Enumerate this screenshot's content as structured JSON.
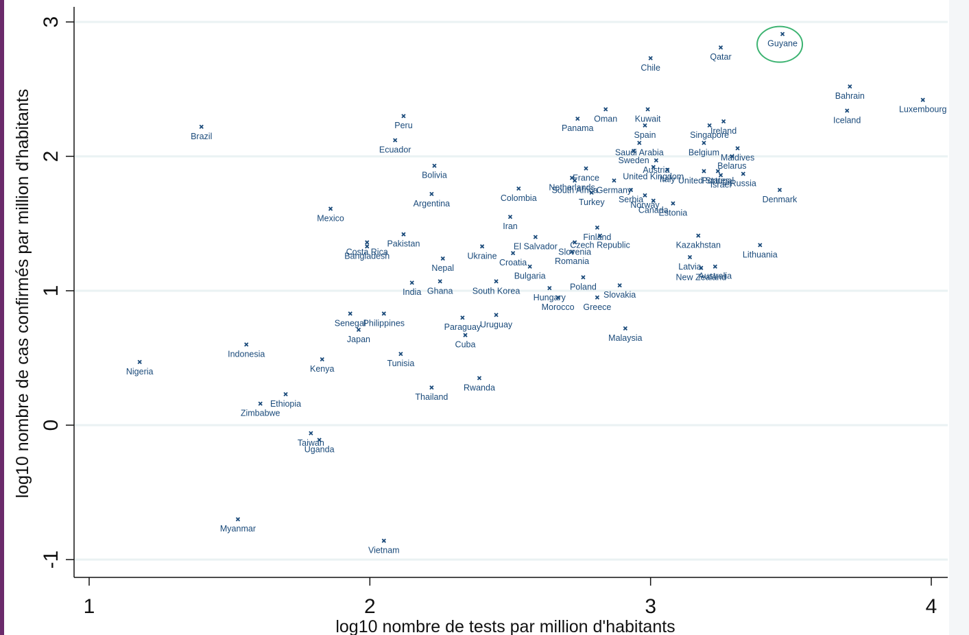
{
  "chart_data": {
    "type": "scatter",
    "title": "",
    "xlabel": "log10 nombre de tests par million d'habitants",
    "ylabel": "log10 nombre de cas confirmés par million d'habitants",
    "xlim": [
      0.95,
      4.06
    ],
    "ylim": [
      -1.12,
      3.1
    ],
    "xticks": [
      1,
      2,
      3,
      4
    ],
    "yticks": [
      -1,
      0,
      1,
      2,
      3
    ],
    "grid": "horizontal",
    "highlight": "Guyane",
    "colors": {
      "marker": "#1a4a7a",
      "grid": "#eaf2f3",
      "highlight": "#3cb371",
      "axis": "#111111"
    },
    "points": [
      {
        "label": "Guyane",
        "x": 3.47,
        "y": 2.91
      },
      {
        "label": "Qatar",
        "x": 3.25,
        "y": 2.81
      },
      {
        "label": "Chile",
        "x": 3.0,
        "y": 2.73
      },
      {
        "label": "Bahrain",
        "x": 3.71,
        "y": 2.52
      },
      {
        "label": "Luxembourg",
        "x": 3.97,
        "y": 2.42
      },
      {
        "label": "Iceland",
        "x": 3.7,
        "y": 2.34
      },
      {
        "label": "Oman",
        "x": 2.84,
        "y": 2.35
      },
      {
        "label": "Kuwait",
        "x": 2.99,
        "y": 2.35
      },
      {
        "label": "Panama",
        "x": 2.74,
        "y": 2.28
      },
      {
        "label": "Brazil",
        "x": 1.4,
        "y": 2.22
      },
      {
        "label": "Peru",
        "x": 2.12,
        "y": 2.3
      },
      {
        "label": "Ecuador",
        "x": 2.09,
        "y": 2.12
      },
      {
        "label": "Spain",
        "x": 2.98,
        "y": 2.23
      },
      {
        "label": "Ireland",
        "x": 3.26,
        "y": 2.26
      },
      {
        "label": "Singapore",
        "x": 3.21,
        "y": 2.23
      },
      {
        "label": "Saudi Arabia",
        "x": 2.96,
        "y": 2.1
      },
      {
        "label": "Sweden",
        "x": 2.94,
        "y": 2.04
      },
      {
        "label": "Belgium",
        "x": 3.19,
        "y": 2.1
      },
      {
        "label": "Maldives",
        "x": 3.31,
        "y": 2.06
      },
      {
        "label": "Bolivia",
        "x": 2.23,
        "y": 1.93
      },
      {
        "label": "Italy",
        "x": 3.06,
        "y": 1.9
      },
      {
        "label": "United States",
        "x": 3.19,
        "y": 1.89
      },
      {
        "label": "Belarus",
        "x": 3.29,
        "y": 2.0
      },
      {
        "label": "South Africa",
        "x": 2.73,
        "y": 1.82
      },
      {
        "label": "Austria",
        "x": 3.02,
        "y": 1.97
      },
      {
        "label": "United Kingdom",
        "x": 3.01,
        "y": 1.92
      },
      {
        "label": "Portugal",
        "x": 3.24,
        "y": 1.89
      },
      {
        "label": "Israel",
        "x": 3.25,
        "y": 1.86
      },
      {
        "label": "Russia",
        "x": 3.33,
        "y": 1.87
      },
      {
        "label": "France",
        "x": 2.77,
        "y": 1.91
      },
      {
        "label": "Germany",
        "x": 2.87,
        "y": 1.82
      },
      {
        "label": "Netherlands",
        "x": 2.72,
        "y": 1.84
      },
      {
        "label": "Colombia",
        "x": 2.53,
        "y": 1.76
      },
      {
        "label": "Denmark",
        "x": 3.46,
        "y": 1.75
      },
      {
        "label": "Argentina",
        "x": 2.22,
        "y": 1.72
      },
      {
        "label": "Turkey",
        "x": 2.79,
        "y": 1.73
      },
      {
        "label": "Serbia",
        "x": 2.93,
        "y": 1.75
      },
      {
        "label": "Norway",
        "x": 2.98,
        "y": 1.71
      },
      {
        "label": "Canada",
        "x": 3.01,
        "y": 1.67
      },
      {
        "label": "Estonia",
        "x": 3.08,
        "y": 1.65
      },
      {
        "label": "Mexico",
        "x": 1.86,
        "y": 1.61
      },
      {
        "label": "Iran",
        "x": 2.5,
        "y": 1.55
      },
      {
        "label": "Finland",
        "x": 2.81,
        "y": 1.47
      },
      {
        "label": "Czech Republic",
        "x": 2.82,
        "y": 1.41
      },
      {
        "label": "Kazakhstan",
        "x": 3.17,
        "y": 1.41
      },
      {
        "label": "Pakistan",
        "x": 2.12,
        "y": 1.42
      },
      {
        "label": "El Salvador",
        "x": 2.59,
        "y": 1.4
      },
      {
        "label": "Slovenia",
        "x": 2.73,
        "y": 1.36
      },
      {
        "label": "Lithuania",
        "x": 3.39,
        "y": 1.34
      },
      {
        "label": "Costa Rica",
        "x": 1.99,
        "y": 1.36
      },
      {
        "label": "Bangladesh",
        "x": 1.99,
        "y": 1.33
      },
      {
        "label": "Ukraine",
        "x": 2.4,
        "y": 1.33
      },
      {
        "label": "Romania",
        "x": 2.72,
        "y": 1.29
      },
      {
        "label": "Croatia",
        "x": 2.51,
        "y": 1.28
      },
      {
        "label": "Latvia",
        "x": 3.14,
        "y": 1.25
      },
      {
        "label": "Nepal",
        "x": 2.26,
        "y": 1.24
      },
      {
        "label": "Bulgaria",
        "x": 2.57,
        "y": 1.18
      },
      {
        "label": "New Zealand",
        "x": 3.18,
        "y": 1.17
      },
      {
        "label": "Australia",
        "x": 3.23,
        "y": 1.18
      },
      {
        "label": "Poland",
        "x": 2.76,
        "y": 1.1
      },
      {
        "label": "India",
        "x": 2.15,
        "y": 1.06
      },
      {
        "label": "Ghana",
        "x": 2.25,
        "y": 1.07
      },
      {
        "label": "South Korea",
        "x": 2.45,
        "y": 1.07
      },
      {
        "label": "Slovakia",
        "x": 2.89,
        "y": 1.04
      },
      {
        "label": "Hungary",
        "x": 2.64,
        "y": 1.02
      },
      {
        "label": "Morocco",
        "x": 2.67,
        "y": 0.95
      },
      {
        "label": "Greece",
        "x": 2.81,
        "y": 0.95
      },
      {
        "label": "Senegal",
        "x": 1.93,
        "y": 0.83
      },
      {
        "label": "Philippines",
        "x": 2.05,
        "y": 0.83
      },
      {
        "label": "Uruguay",
        "x": 2.45,
        "y": 0.82
      },
      {
        "label": "Paraguay",
        "x": 2.33,
        "y": 0.8
      },
      {
        "label": "Malaysia",
        "x": 2.91,
        "y": 0.72
      },
      {
        "label": "Japan",
        "x": 1.96,
        "y": 0.71
      },
      {
        "label": "Cuba",
        "x": 2.34,
        "y": 0.67
      },
      {
        "label": "Indonesia",
        "x": 1.56,
        "y": 0.6
      },
      {
        "label": "Tunisia",
        "x": 2.11,
        "y": 0.53
      },
      {
        "label": "Kenya",
        "x": 1.83,
        "y": 0.49
      },
      {
        "label": "Nigeria",
        "x": 1.18,
        "y": 0.47
      },
      {
        "label": "Rwanda",
        "x": 2.39,
        "y": 0.35
      },
      {
        "label": "Thailand",
        "x": 2.22,
        "y": 0.28
      },
      {
        "label": "Ethiopia",
        "x": 1.7,
        "y": 0.23
      },
      {
        "label": "Zimbabwe",
        "x": 1.61,
        "y": 0.16
      },
      {
        "label": "Taiwan",
        "x": 1.79,
        "y": -0.06
      },
      {
        "label": "Uganda",
        "x": 1.82,
        "y": -0.11
      },
      {
        "label": "Myanmar",
        "x": 1.53,
        "y": -0.7
      },
      {
        "label": "Vietnam",
        "x": 2.05,
        "y": -0.86
      }
    ]
  }
}
